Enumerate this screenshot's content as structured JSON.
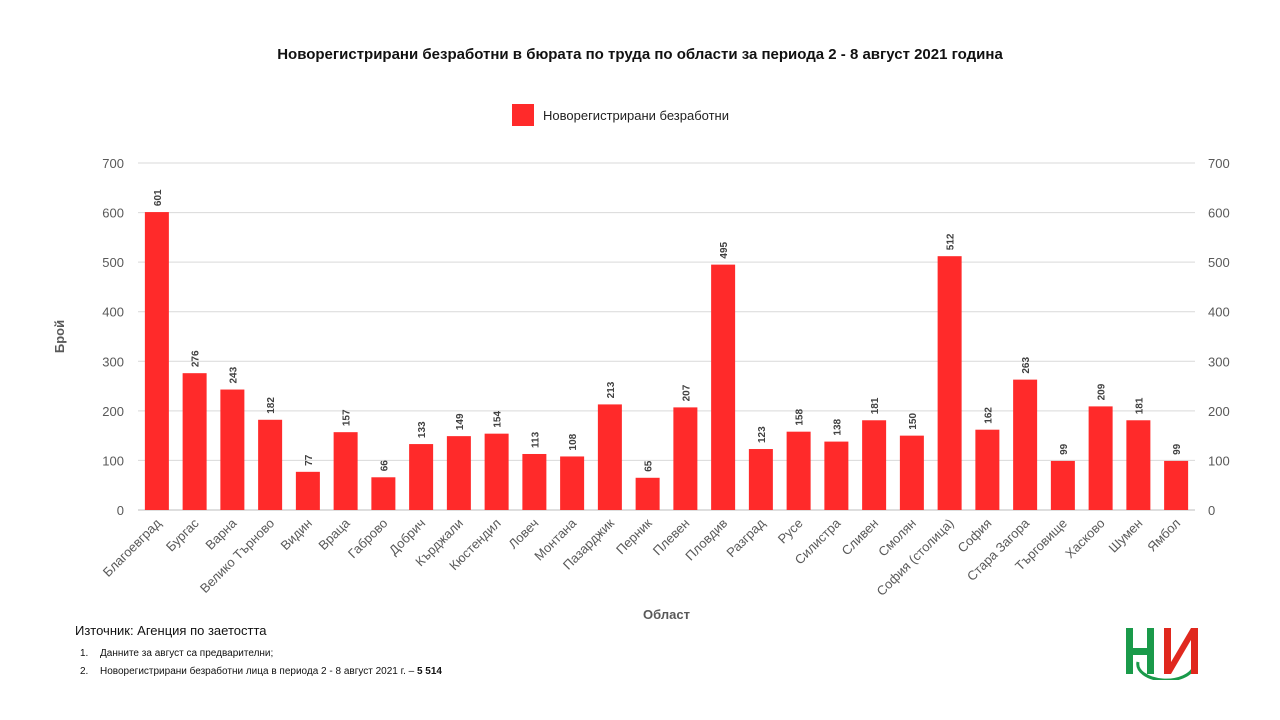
{
  "chart_data": {
    "type": "bar",
    "title": "Новорегистрирани безработни в бюрата по труда по области за периода 2 - 8 август 2021 година",
    "xlabel": "Област",
    "ylabel": "Брой",
    "ylim": [
      0,
      700
    ],
    "yticks": [
      0,
      100,
      200,
      300,
      400,
      500,
      600,
      700
    ],
    "grid": true,
    "legend_position": "top-center",
    "secondary_y_axis": true,
    "categories": [
      "Благоевград",
      "Бургас",
      "Варна",
      "Велико Търново",
      "Видин",
      "Враца",
      "Габрово",
      "Добрич",
      "Кърджали",
      "Кюстендил",
      "Ловеч",
      "Монтана",
      "Пазарджик",
      "Перник",
      "Плевен",
      "Пловдив",
      "Разград",
      "Русе",
      "Силистра",
      "Сливен",
      "Смолян",
      "София (столица)",
      "София",
      "Стара Загора",
      "Търговище",
      "Хасково",
      "Шумен",
      "Ямбол"
    ],
    "series": [
      {
        "name": "Новорегистрирани безработни",
        "color": "#ff2a2a",
        "values": [
          601,
          276,
          243,
          182,
          77,
          157,
          66,
          133,
          149,
          154,
          113,
          108,
          213,
          65,
          207,
          495,
          123,
          158,
          138,
          181,
          150,
          512,
          162,
          263,
          99,
          209,
          181,
          99
        ]
      }
    ]
  },
  "source": "Източник: Агенция по заетостта",
  "footnotes": [
    {
      "num": "1.",
      "text": "Данните за август са предварителни;",
      "bold": ""
    },
    {
      "num": "2.",
      "text": "Новорегистрирани безработни лица в периода  2 - 8 август 2021 г. – ",
      "bold": "5 514"
    }
  ],
  "logo": {
    "colors": {
      "white": "#ffffff",
      "green": "#1a9a4a",
      "red": "#e0281e"
    }
  }
}
